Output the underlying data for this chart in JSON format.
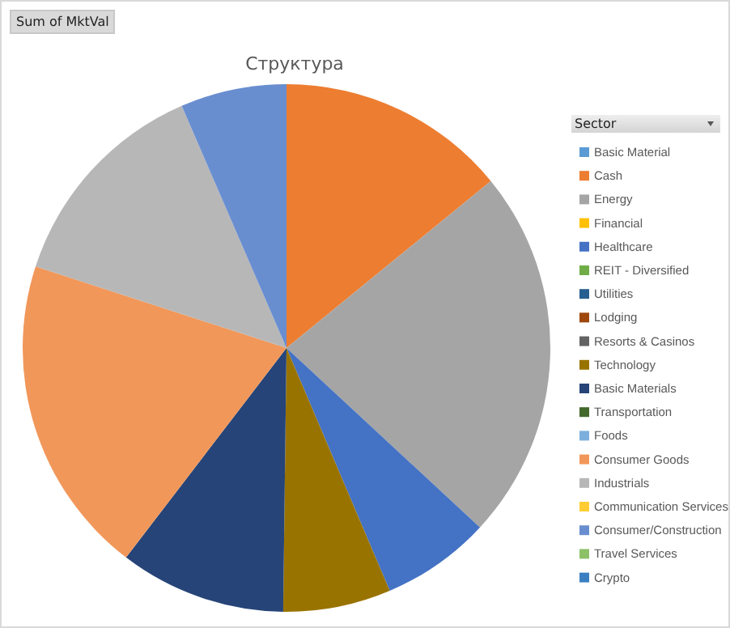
{
  "chart_data": {
    "type": "pie",
    "title": "Структура",
    "legend_title": "Sector",
    "annotations": [
      "Sum of MktVal"
    ],
    "legend": "right",
    "categories": [
      "Basic Material",
      "Cash",
      "Energy",
      "Financial",
      "Healthcare",
      "REIT - Diversified",
      "Utilities",
      "Lodging",
      "Resorts & Casinos",
      "Technology",
      "Basic Materials",
      "Transportation",
      "Foods",
      "Consumer Goods",
      "Industrials",
      "Communication Services",
      "Consumer/Construction",
      "Travel Services",
      "Crypto"
    ],
    "values": [
      0,
      14.1,
      22.8,
      0,
      6.7,
      0,
      0,
      0,
      0,
      6.6,
      10.2,
      0,
      0,
      19.6,
      13.5,
      0,
      6.5,
      0,
      0
    ],
    "colors": [
      "#5b9bd5",
      "#ed7d31",
      "#a5a5a5",
      "#ffc000",
      "#4472c4",
      "#70ad47",
      "#255e91",
      "#9e480e",
      "#636363",
      "#997300",
      "#264478",
      "#43682b",
      "#7cafdd",
      "#f1975a",
      "#b7b7b7",
      "#ffcd33",
      "#698ed0",
      "#8cc168",
      "#3a7fc1"
    ]
  }
}
